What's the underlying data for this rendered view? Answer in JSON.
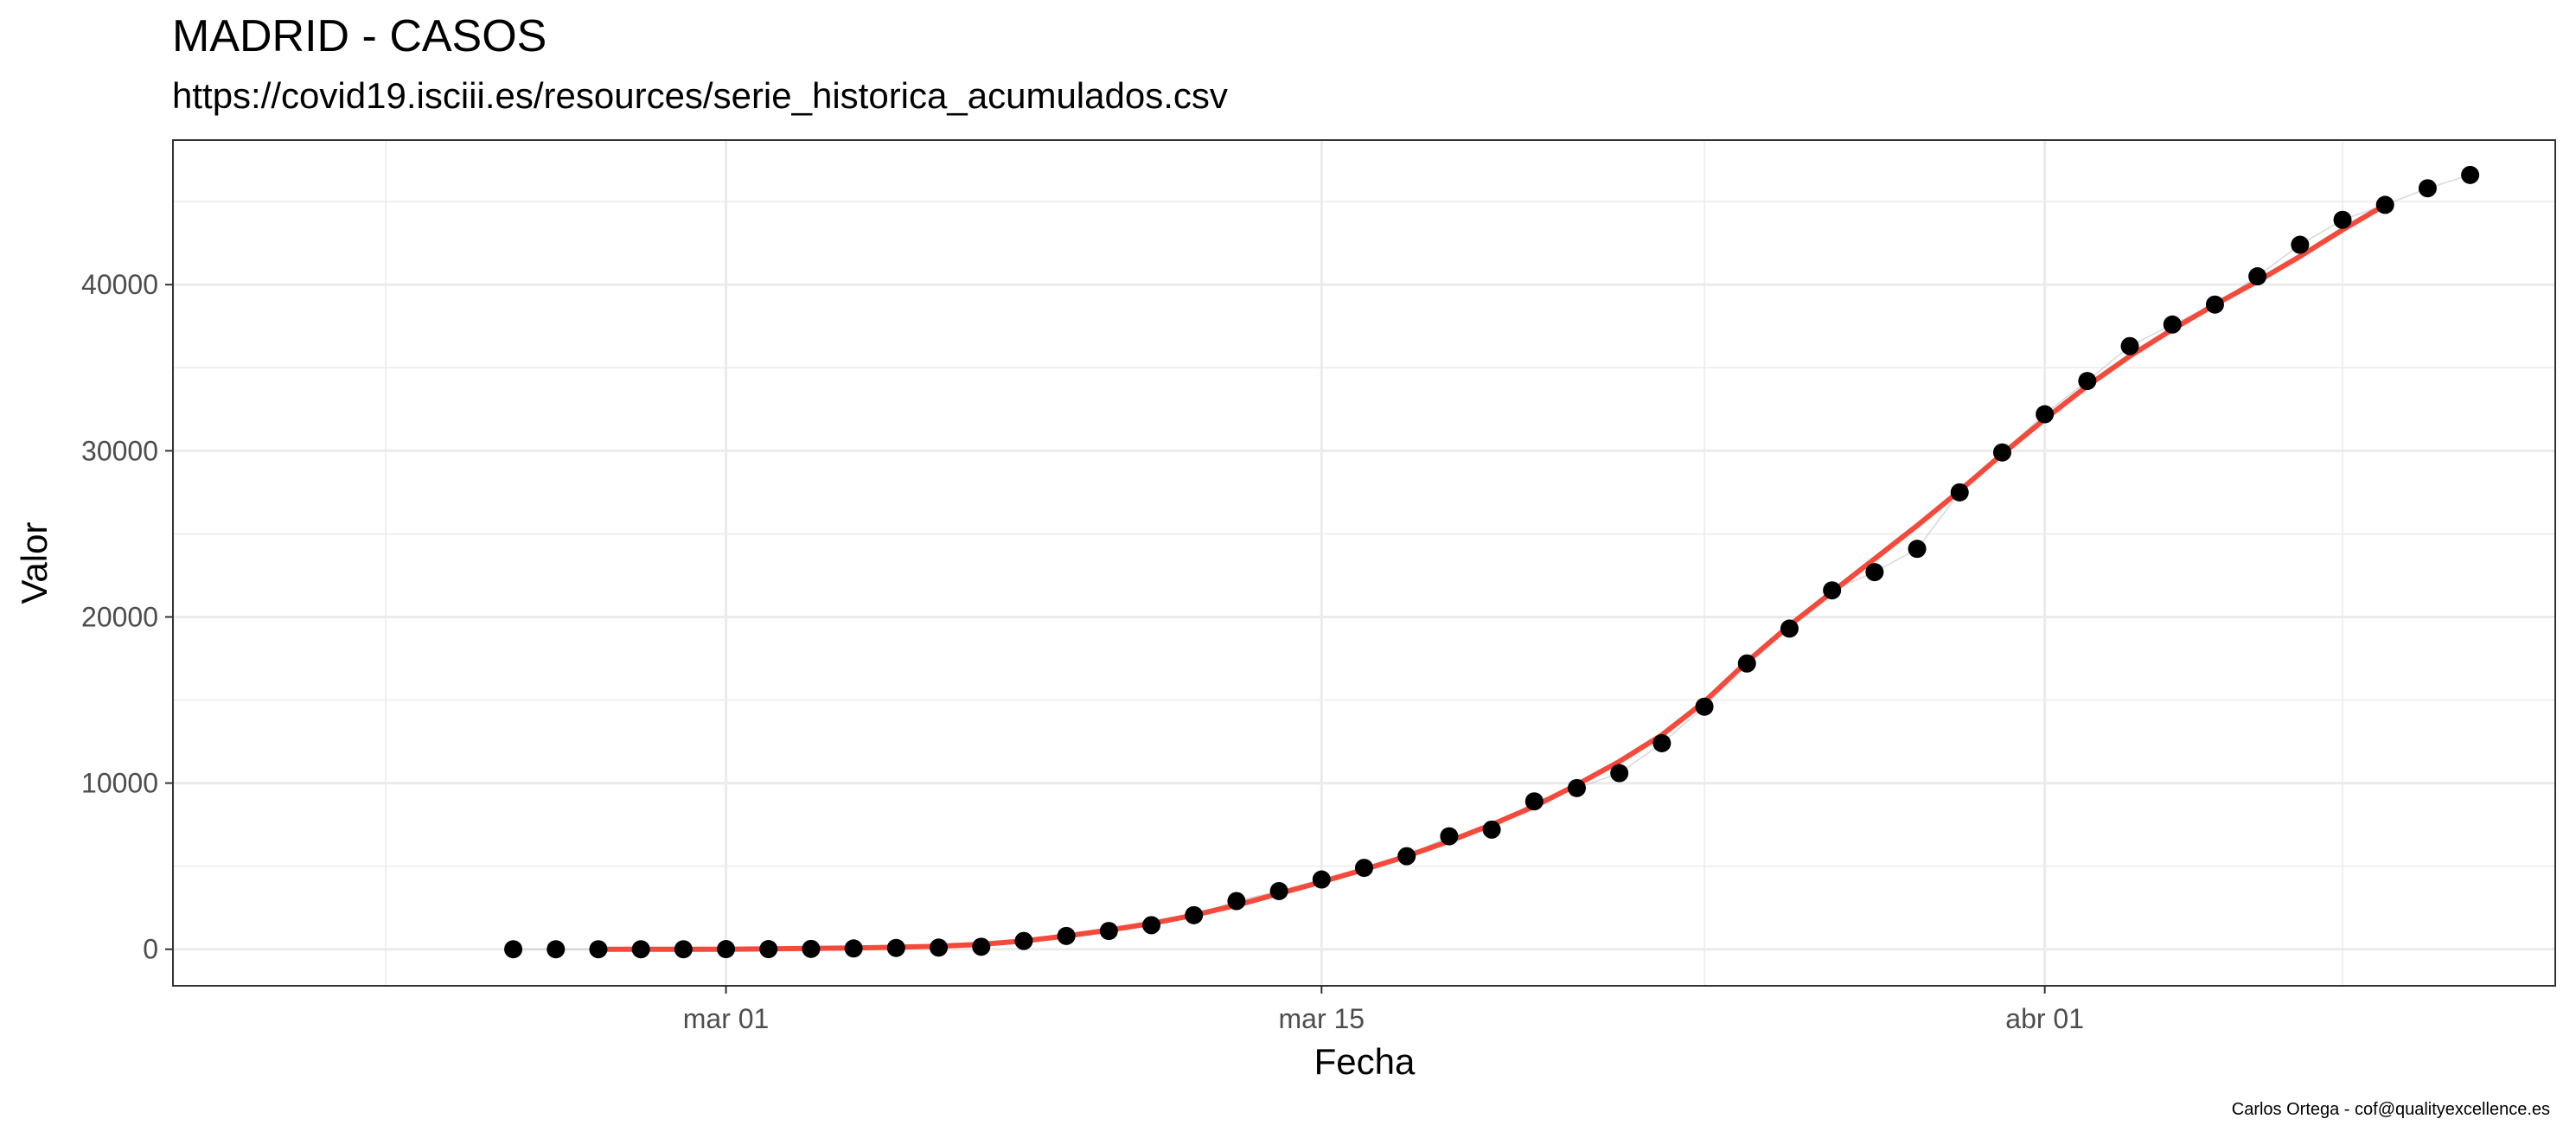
{
  "chart_data": {
    "type": "scatter",
    "title": "MADRID - CASOS",
    "subtitle": "https://covid19.isciii.es/resources/serie_historica_acumulados.csv",
    "caption": "Carlos Ortega - cof@qualityexcellence.es",
    "xlabel": "Fecha",
    "ylabel": "Valor",
    "x_axis": {
      "type": "date",
      "range": [
        "2020-02-17",
        "2020-04-13"
      ],
      "major_ticks": [
        "2020-03-01",
        "2020-03-15",
        "2020-04-01"
      ],
      "tick_labels": [
        "mar 01",
        "mar 15",
        "abr 01"
      ],
      "minor_ticks": [
        "2020-02-22",
        "2020-03-24",
        "2020-04-08"
      ]
    },
    "y_axis": {
      "range": [
        -2200,
        48700
      ],
      "major_ticks": [
        0,
        10000,
        20000,
        30000,
        40000
      ],
      "tick_labels": [
        "0",
        "10000",
        "20000",
        "30000",
        "40000"
      ],
      "minor_ticks": [
        5000,
        15000,
        25000,
        35000,
        45000
      ]
    },
    "grid": true,
    "legend": "none",
    "colors": {
      "points": "#000000",
      "smooth": "#F44A3C",
      "connector": "#BEBEBE",
      "grid": "#EBEBEB",
      "panel_border": "#333333"
    },
    "series": [
      {
        "type": "scatter",
        "x": [
          "2020-02-25",
          "2020-02-26",
          "2020-02-27",
          "2020-02-28",
          "2020-02-29",
          "2020-03-01",
          "2020-03-02",
          "2020-03-03",
          "2020-03-04",
          "2020-03-05",
          "2020-03-06",
          "2020-03-07",
          "2020-03-08",
          "2020-03-09",
          "2020-03-10",
          "2020-03-11",
          "2020-03-12",
          "2020-03-13",
          "2020-03-14",
          "2020-03-15",
          "2020-03-16",
          "2020-03-17",
          "2020-03-18",
          "2020-03-19",
          "2020-03-20",
          "2020-03-21",
          "2020-03-22",
          "2020-03-23",
          "2020-03-24",
          "2020-03-25",
          "2020-03-26",
          "2020-03-27",
          "2020-03-28",
          "2020-03-29",
          "2020-03-30",
          "2020-03-31",
          "2020-04-01",
          "2020-04-02",
          "2020-04-03",
          "2020-04-04",
          "2020-04-05",
          "2020-04-06",
          "2020-04-07",
          "2020-04-08",
          "2020-04-09",
          "2020-04-10",
          "2020-04-11"
        ],
        "y": [
          0,
          0,
          0,
          0,
          0,
          10,
          10,
          20,
          50,
          80,
          100,
          150,
          500,
          800,
          1100,
          1450,
          2050,
          2900,
          3500,
          4200,
          4900,
          5600,
          6800,
          7200,
          8900,
          9700,
          10600,
          12400,
          14600,
          17200,
          19300,
          21600,
          22700,
          24100,
          27500,
          29900,
          32200,
          34200,
          36300,
          37600,
          38800,
          40500,
          42400,
          43900,
          44800,
          45800,
          46600
        ]
      },
      {
        "type": "line",
        "x": [
          "2020-02-27",
          "2020-02-28",
          "2020-02-29",
          "2020-03-01",
          "2020-03-02",
          "2020-03-03",
          "2020-03-04",
          "2020-03-05",
          "2020-03-06",
          "2020-03-07",
          "2020-03-08",
          "2020-03-09",
          "2020-03-10",
          "2020-03-11",
          "2020-03-12",
          "2020-03-13",
          "2020-03-14",
          "2020-03-15",
          "2020-03-16",
          "2020-03-17",
          "2020-03-18",
          "2020-03-19",
          "2020-03-20",
          "2020-03-21",
          "2020-03-22",
          "2020-03-23",
          "2020-03-24",
          "2020-03-25",
          "2020-03-26",
          "2020-03-27",
          "2020-03-28",
          "2020-03-29",
          "2020-03-30",
          "2020-03-31",
          "2020-04-01",
          "2020-04-02",
          "2020-04-03",
          "2020-04-04",
          "2020-04-05",
          "2020-04-06",
          "2020-04-07",
          "2020-04-08",
          "2020-04-09"
        ],
        "y": [
          0,
          0,
          0,
          0,
          20,
          50,
          80,
          120,
          180,
          300,
          500,
          800,
          1150,
          1550,
          2050,
          2650,
          3350,
          4050,
          4800,
          5600,
          6500,
          7500,
          8600,
          9900,
          11300,
          12900,
          14900,
          17300,
          19500,
          21500,
          23500,
          25500,
          27600,
          29800,
          31900,
          33900,
          35700,
          37300,
          38800,
          40200,
          41700,
          43300,
          44800
        ]
      }
    ]
  }
}
